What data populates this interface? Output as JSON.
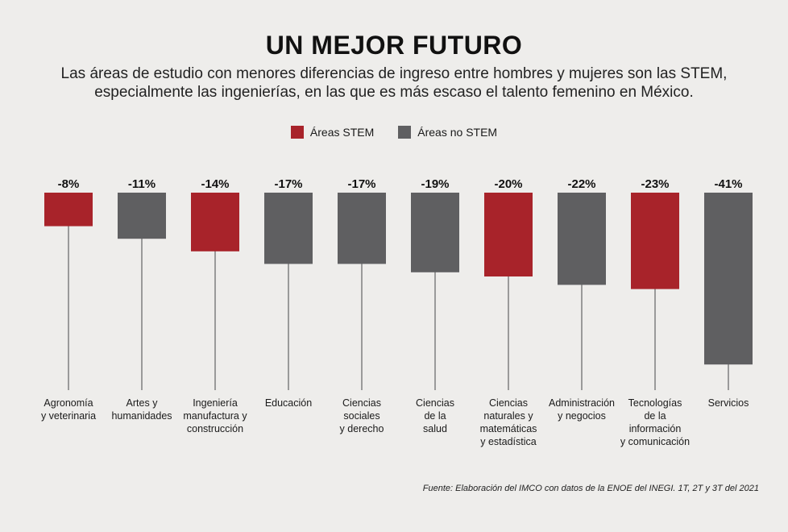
{
  "chart_data": {
    "type": "bar",
    "title": "UN MEJOR FUTURO",
    "subtitle_lines": [
      "Las áreas de estudio con menores diferencias de ingreso entre hombres y mujeres son las STEM,",
      "especialmente las ingenierías, en las que es más escaso el talento femenino en México."
    ],
    "legend": [
      {
        "name": "Áreas STEM",
        "color": "#a8232a"
      },
      {
        "name": "Áreas no STEM",
        "color": "#5f5f61"
      }
    ],
    "categories": [
      [
        "Agronomía",
        "y veterinaria"
      ],
      [
        "Artes y",
        "humanidades"
      ],
      [
        "Ingeniería",
        "manufactura y",
        "construcción"
      ],
      [
        "Educación"
      ],
      [
        "Ciencias",
        "sociales",
        "y derecho"
      ],
      [
        "Ciencias",
        "de la",
        "salud"
      ],
      [
        "Ciencias",
        "naturales y",
        "matemáticas",
        "y estadística"
      ],
      [
        "Administración",
        "y negocios"
      ],
      [
        "Tecnologías",
        "de la",
        "información",
        "y comunicación"
      ],
      [
        "Servicios"
      ]
    ],
    "values": [
      -8,
      -11,
      -14,
      -17,
      -17,
      -19,
      -20,
      -22,
      -23,
      -41
    ],
    "value_labels": [
      "-8%",
      "-11%",
      "-14%",
      "-17%",
      "-17%",
      "-19%",
      "-20%",
      "-22%",
      "-23%",
      "-41%"
    ],
    "stem": [
      true,
      false,
      true,
      false,
      false,
      false,
      true,
      false,
      true,
      false
    ],
    "ylim": [
      -50,
      0
    ],
    "grid": false
  },
  "source": "Fuente: Elaboración del IMCO con datos de la ENOE del INEGI. 1T, 2T y 3T del 2021"
}
